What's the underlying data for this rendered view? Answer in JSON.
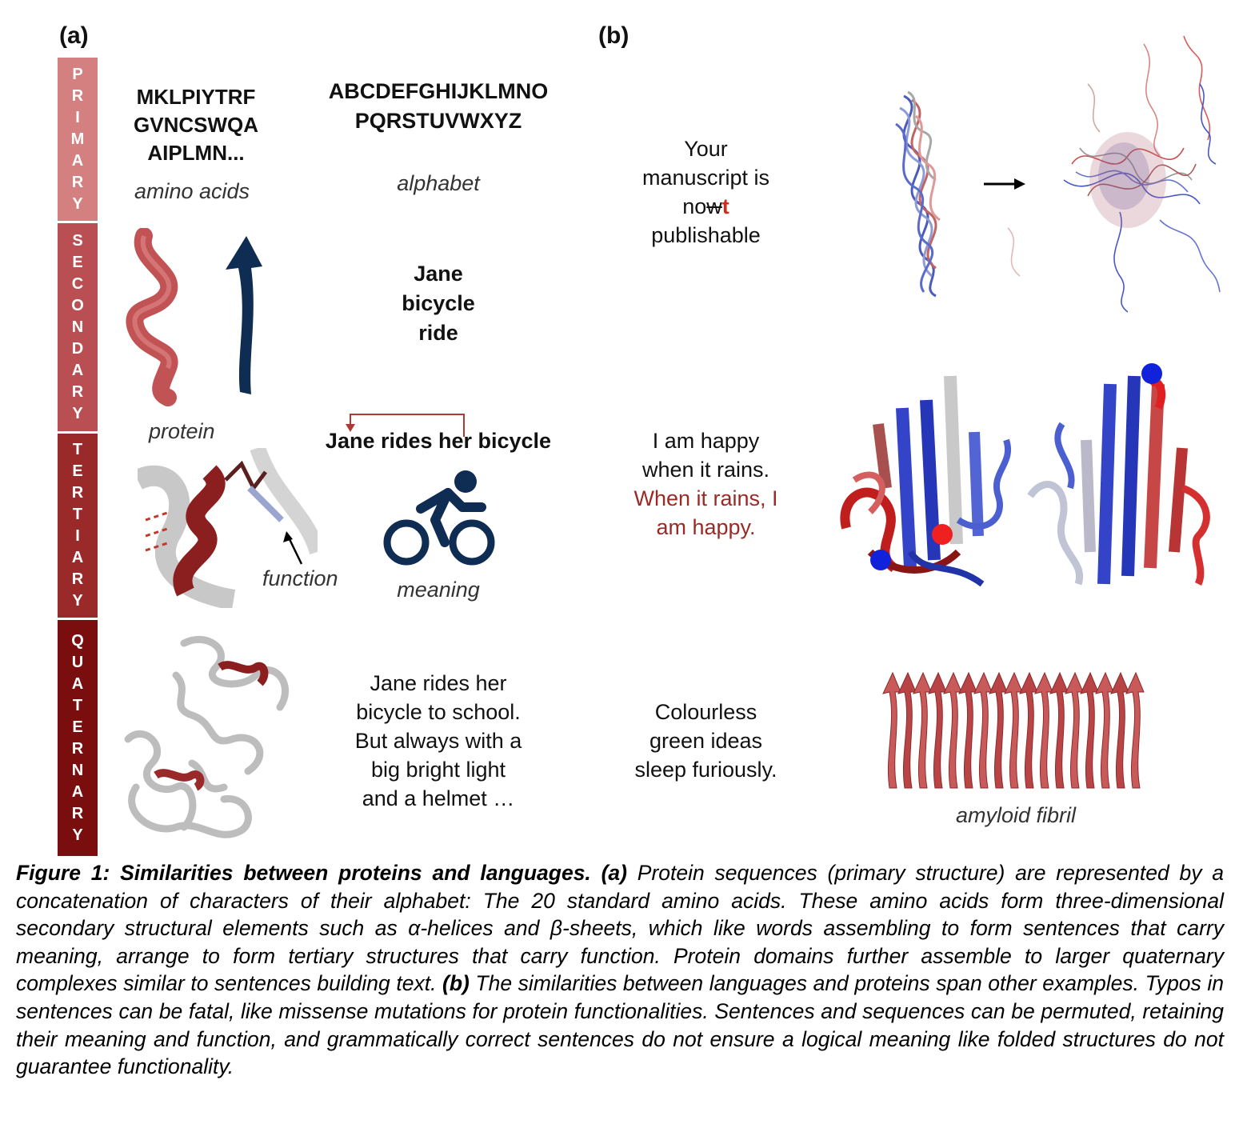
{
  "panel_a_label": "(a)",
  "panel_b_label": "(b)",
  "levels": {
    "primary": [
      "P",
      "R",
      "I",
      "M",
      "A",
      "R",
      "Y"
    ],
    "secondary": [
      "S",
      "E",
      "C",
      "O",
      "N",
      "D",
      "A",
      "R",
      "Y"
    ],
    "tertiary": [
      "T",
      "E",
      "R",
      "T",
      "I",
      "A",
      "R",
      "Y"
    ],
    "quaternary": [
      "Q",
      "U",
      "A",
      "T",
      "E",
      "R",
      "N",
      "A",
      "R",
      "Y"
    ]
  },
  "level_colors": {
    "primary": "#d47f80",
    "secondary": "#b94f52",
    "tertiary": "#9a2a2a",
    "quaternary": "#7a0d0d"
  },
  "primary": {
    "sequence": [
      "MKLPIYTRF",
      "GVNCSWQA",
      "AIPLMN..."
    ],
    "sequence_label": "amino acids",
    "alphabet": [
      "ABCDEFGHIJKLMNO",
      "PQRSTUVWXYZ"
    ],
    "alphabet_label": "alphabet"
  },
  "secondary": {
    "words": [
      "Jane",
      "bicycle",
      "ride"
    ]
  },
  "tertiary": {
    "protein_label": "protein",
    "function_label": "function",
    "sentence": "Jane rides her bicycle",
    "meaning_label": "meaning"
  },
  "quaternary": {
    "text": [
      "Jane rides her",
      "bicycle to school.",
      "But always with a",
      "big bright light",
      "and a helmet …"
    ]
  },
  "panel_b": {
    "typo": {
      "lines": [
        "Your",
        "manuscript is"
      ],
      "now_prefix": "no",
      "now_struck": "w",
      "now_added": "t",
      "last": "publishable"
    },
    "permute": {
      "plain": [
        "I am happy",
        "when it rains."
      ],
      "red": [
        "When it rains, I",
        "am happy."
      ]
    },
    "grammar": [
      "Colourless",
      "green ideas",
      "sleep furiously."
    ],
    "fibril_label": "amyloid fibril"
  },
  "caption": {
    "fig": "Figure 1: Similarities between proteins and languages.",
    "a": "(a)",
    "text1": " Protein sequences (primary structure) are represented by a concatenation of characters of their alphabet: The 20 standard amino acids. These amino acids form three-dimensional secondary structural elements such as α-helices and β-sheets, which like words assembling to form sentences that carry meaning, arrange to form tertiary structures that carry function. Protein domains further assemble to larger quaternary complexes similar to sentences building text. ",
    "b": "(b)",
    "text2": " The similarities between languages and proteins span other examples. Typos in sentences can be fatal, like missense mutations for protein functionalities. Sentences and sequences can be permuted, retaining their meaning and function, and grammatically correct sentences do not ensure a logical meaning like folded structures do not guarantee functionality."
  }
}
